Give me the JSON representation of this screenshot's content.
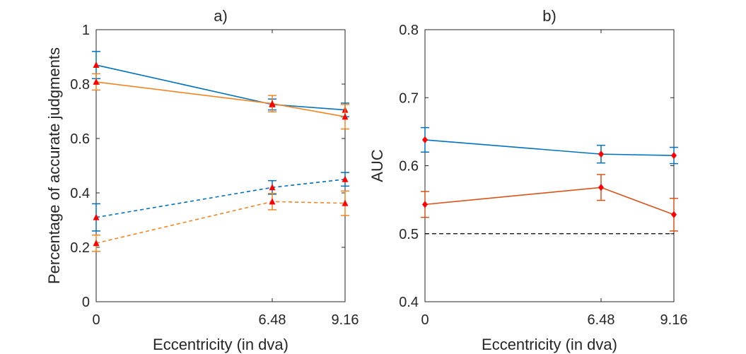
{
  "chart_data": [
    {
      "type": "line",
      "title": "a)",
      "xlabel": "Eccentricity (in dva)",
      "ylabel": "Percentage of accurate judgments",
      "xlim": [
        0,
        9.16
      ],
      "ylim": [
        0,
        1
      ],
      "xticks": [
        0,
        6.48,
        9.16
      ],
      "xtick_labels": [
        "0",
        "6.48",
        "9.16"
      ],
      "yticks": [
        0,
        0.2,
        0.4,
        0.6,
        0.8,
        1
      ],
      "ytick_labels": [
        "0",
        "0.2",
        "0.4",
        "0.6",
        "0.8",
        "1"
      ],
      "grid": false,
      "x": [
        0,
        6.48,
        9.16
      ],
      "series": [
        {
          "color": "#0072BD",
          "dash": "solid",
          "marker": "triangle",
          "marker_color": "#FF0000",
          "y": [
            0.87,
            0.725,
            0.705
          ],
          "err": [
            0.05,
            0.02,
            0.025
          ]
        },
        {
          "color": "#EDB120",
          "dash": "solid",
          "marker": "triangle",
          "marker_color": "#FF0000",
          "y": [
            0.808,
            0.728,
            0.68
          ],
          "err": [
            0.03,
            0.03,
            0.045
          ],
          "line_color": "#F28522"
        },
        {
          "color": "#0072BD",
          "dash": "dashed",
          "marker": "triangle",
          "marker_color": "#FF0000",
          "y": [
            0.31,
            0.42,
            0.45
          ],
          "err": [
            0.05,
            0.025,
            0.025
          ]
        },
        {
          "color": "#F28522",
          "dash": "dashed",
          "marker": "triangle",
          "marker_color": "#FF0000",
          "y": [
            0.215,
            0.368,
            0.362
          ],
          "err": [
            0.03,
            0.03,
            0.045
          ]
        }
      ]
    },
    {
      "type": "line",
      "title": "b)",
      "xlabel": "Eccentricity (in dva)",
      "ylabel": "AUC",
      "xlim": [
        0,
        9.16
      ],
      "ylim": [
        0.4,
        0.8
      ],
      "xticks": [
        0,
        6.48,
        9.16
      ],
      "xtick_labels": [
        "0",
        "6.48",
        "9.16"
      ],
      "yticks": [
        0.4,
        0.5,
        0.6,
        0.7,
        0.8
      ],
      "ytick_labels": [
        "0.4",
        "0.5",
        "0.6",
        "0.7",
        "0.8"
      ],
      "grid": false,
      "reference_line": {
        "y": 0.5,
        "dash": "dashed",
        "color": "#000000"
      },
      "x": [
        0,
        6.48,
        9.16
      ],
      "series": [
        {
          "color": "#0072BD",
          "dash": "solid",
          "marker": "diamond",
          "marker_color": "#FF0000",
          "y": [
            0.638,
            0.617,
            0.615
          ],
          "err": [
            0.018,
            0.013,
            0.012
          ]
        },
        {
          "color": "#D95319",
          "dash": "solid",
          "marker": "diamond",
          "marker_color": "#FF0000",
          "y": [
            0.543,
            0.568,
            0.528
          ],
          "err": [
            0.019,
            0.019,
            0.024
          ]
        }
      ]
    }
  ]
}
